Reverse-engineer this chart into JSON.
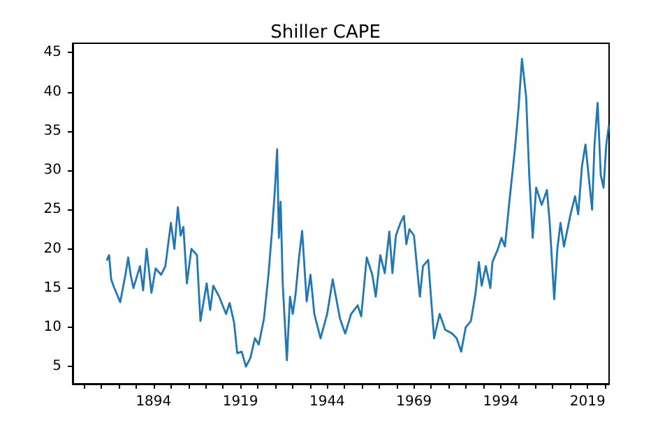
{
  "chart_data": {
    "type": "line",
    "title": "Shiller CAPE",
    "x": [
      1880.6,
      1881.2,
      1881.8,
      1882.7,
      1884.4,
      1885.9,
      1886.7,
      1887.4,
      1888.2,
      1890.1,
      1891,
      1892,
      1893.4,
      1894.6,
      1896.2,
      1897.4,
      1899,
      1900,
      1901,
      1901.8,
      1902.6,
      1903.6,
      1904.9,
      1906.5,
      1907.5,
      1909.3,
      1910.3,
      1911.2,
      1912.9,
      1914.9,
      1915.9,
      1917.2,
      1918.1,
      1919.4,
      1920.6,
      1921.9,
      1923.2,
      1924.3,
      1925.8,
      1927.1,
      1928.1,
      1928.9,
      1929.6,
      1930.1,
      1930.6,
      1931.2,
      1932.4,
      1933.3,
      1934.1,
      1934.9,
      1935.9,
      1936.8,
      1938.1,
      1939.2,
      1940.3,
      1942.1,
      1944,
      1945.6,
      1947.7,
      1949.2,
      1950.9,
      1952.8,
      1953.8,
      1955.4,
      1957,
      1958,
      1959.3,
      1960.6,
      1961.9,
      1962.8,
      1963.8,
      1965.1,
      1966.1,
      1966.8,
      1967.7,
      1969,
      1970.7,
      1971.6,
      1973.1,
      1974.8,
      1976.4,
      1978,
      1980,
      1981.3,
      1982.6,
      1983.9,
      1985.4,
      1986.7,
      1987.7,
      1988.5,
      1989.7,
      1991,
      1991.6,
      1993.2,
      1994.2,
      1995.2,
      1996.5,
      1998.1,
      1999.1,
      2000.1,
      2001.3,
      2002.2,
      2003.2,
      2004.2,
      2005.8,
      2007.3,
      2008.1,
      2009.4,
      2010.3,
      2011.2,
      2012.2,
      2014.1,
      2015.4,
      2016.3,
      2017.4,
      2018.4,
      2019.4,
      2020.3,
      2021,
      2021.9,
      2022.8,
      2023.6,
      2024.4,
      2025.1
    ],
    "series": [
      {
        "color": "#1f77b4",
        "values": [
          18.6,
          19.2,
          16.1,
          15,
          13.2,
          16.7,
          18.9,
          16.7,
          15,
          17.8,
          14.7,
          20,
          14.4,
          17.5,
          16.7,
          17.8,
          23.3,
          20,
          25.3,
          21.7,
          22.8,
          15.6,
          20,
          19.2,
          10.8,
          15.6,
          12.2,
          15.3,
          13.9,
          11.7,
          13.1,
          10.6,
          6.7,
          6.9,
          5,
          6.1,
          8.6,
          7.8,
          11.1,
          16.7,
          22.2,
          27.2,
          32.7,
          21.4,
          26,
          15.6,
          5.8,
          13.9,
          11.7,
          14.2,
          18.9,
          22.3,
          13.3,
          16.7,
          11.7,
          8.6,
          11.7,
          16.1,
          11.1,
          9.2,
          11.7,
          12.8,
          11.4,
          18.9,
          16.7,
          13.9,
          19.2,
          16.9,
          22.2,
          16.9,
          21.7,
          23.3,
          24.2,
          20.6,
          22.5,
          21.7,
          13.9,
          17.8,
          18.6,
          8.6,
          11.7,
          9.7,
          9.2,
          8.6,
          6.9,
          10,
          10.8,
          14.2,
          18.3,
          15.3,
          17.8,
          15,
          18.3,
          20,
          21.4,
          20.3,
          26.1,
          32.8,
          37.8,
          44.2,
          39.4,
          29.4,
          21.4,
          27.8,
          25.6,
          27.5,
          23.3,
          13.6,
          20,
          23.3,
          20.3,
          24.4,
          26.7,
          24.4,
          30.6,
          33.3,
          28.9,
          25,
          33.3,
          38.6,
          29.4,
          27.8,
          33.3,
          35.6
        ]
      }
    ],
    "xlim": [
      1870.7,
      2025.2
    ],
    "xticks": [
      {
        "value": 1874,
        "label": null
      },
      {
        "value": 1879,
        "label": null
      },
      {
        "value": 1884,
        "label": null
      },
      {
        "value": 1889,
        "label": null
      },
      1894,
      {
        "value": 1899,
        "label": null
      },
      {
        "value": 1904,
        "label": null
      },
      {
        "value": 1909,
        "label": null
      },
      {
        "value": 1914,
        "label": null
      },
      1919,
      {
        "value": 1924,
        "label": null
      },
      {
        "value": 1929,
        "label": null
      },
      {
        "value": 1934,
        "label": null
      },
      {
        "value": 1939,
        "label": null
      },
      1944,
      {
        "value": 1949,
        "label": null
      },
      {
        "value": 1954,
        "label": null
      },
      {
        "value": 1959,
        "label": null
      },
      {
        "value": 1964,
        "label": null
      },
      1969,
      {
        "value": 1974,
        "label": null
      },
      {
        "value": 1979,
        "label": null
      },
      {
        "value": 1984,
        "label": null
      },
      {
        "value": 1989,
        "label": null
      },
      1994,
      {
        "value": 1999,
        "label": null
      },
      {
        "value": 2004,
        "label": null
      },
      {
        "value": 2009,
        "label": null
      },
      {
        "value": 2014,
        "label": null
      },
      2019,
      {
        "value": 2024,
        "label": null
      }
    ],
    "ylim": [
      2.8,
      46.2
    ],
    "yticks": [
      5,
      10,
      15,
      20,
      25,
      30,
      35,
      40,
      45
    ],
    "grid": false,
    "marker": "none",
    "line_style": "solid"
  }
}
